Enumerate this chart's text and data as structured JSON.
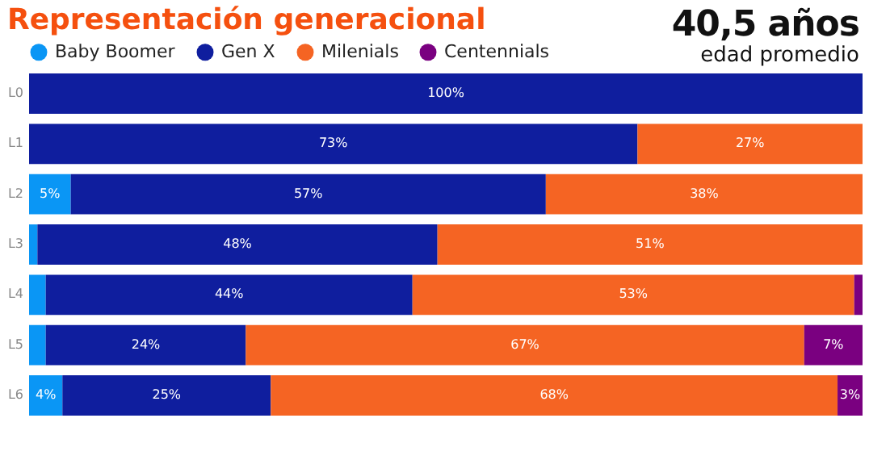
{
  "chart_data": {
    "type": "bar",
    "title": "Representación generacional",
    "orientation": "horizontal",
    "stacked": true,
    "legend": "top left",
    "categories": [
      "L0",
      "L1",
      "L2",
      "L3",
      "L4",
      "L5",
      "L6"
    ],
    "series": [
      {
        "name": "Baby Boomer",
        "color": "#0a96f5",
        "values": [
          0,
          0,
          5,
          1,
          2,
          2,
          4
        ],
        "value_labels": [
          null,
          null,
          "5%",
          null,
          null,
          null,
          "4%"
        ]
      },
      {
        "name": "Gen X",
        "color": "#0f1e9e",
        "values": [
          100,
          73,
          57,
          48,
          44,
          24,
          25
        ],
        "value_labels": [
          "100%",
          "73%",
          "57%",
          "48%",
          "44%",
          "24%",
          "25%"
        ]
      },
      {
        "name": "Milenials",
        "color": "#f56423",
        "values": [
          0,
          27,
          38,
          51,
          53,
          67,
          68
        ],
        "value_labels": [
          null,
          "27%",
          "38%",
          "51%",
          "53%",
          "67%",
          "68%"
        ]
      },
      {
        "name": "Centennials",
        "color": "#7a0080",
        "values": [
          0,
          0,
          0,
          0,
          1,
          7,
          3
        ],
        "value_labels": [
          null,
          null,
          null,
          null,
          null,
          "7%",
          "3%"
        ]
      }
    ],
    "annotations": [
      "40,5 años",
      "edad promedio"
    ]
  }
}
